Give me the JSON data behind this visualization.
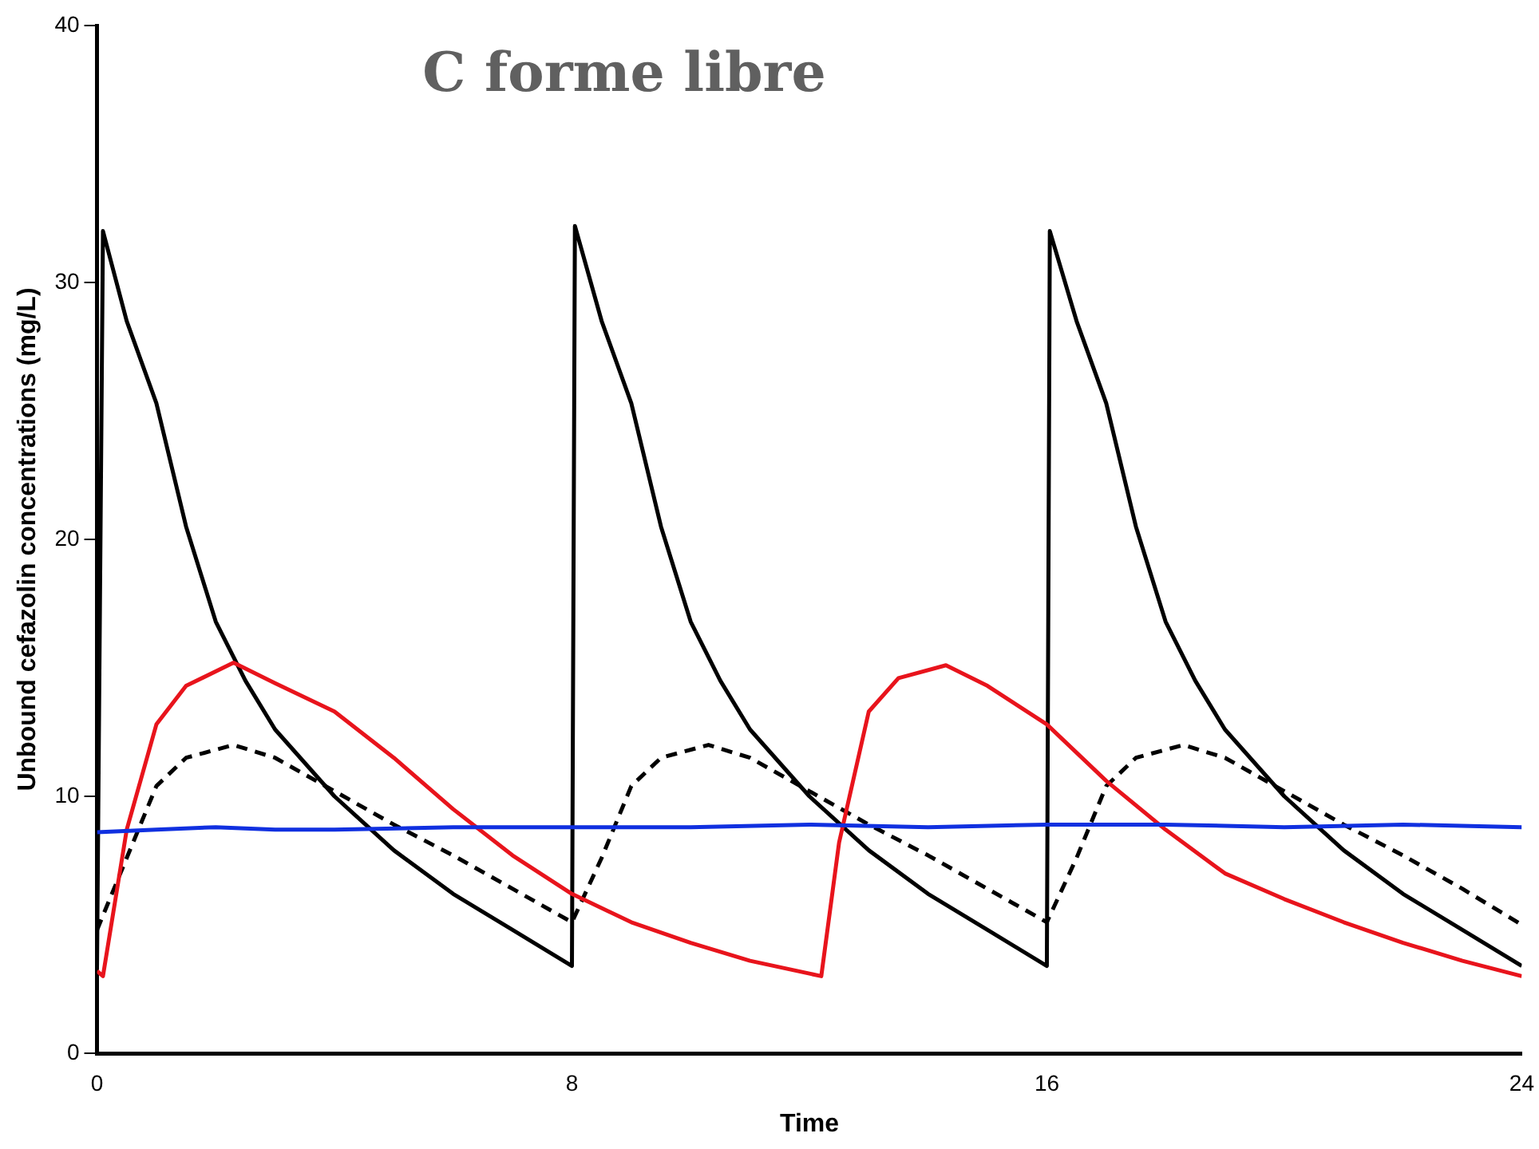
{
  "chart_data": {
    "type": "line",
    "title": "C forme libre",
    "xlabel": "Time",
    "ylabel": "Unbound cefazolin concentrations (mg/L)",
    "xlim": [
      0,
      24
    ],
    "xticks": [
      0,
      8,
      16,
      24
    ],
    "ylim": [
      0,
      40
    ],
    "yticks": [
      0,
      10,
      20,
      30,
      40
    ],
    "grid": false,
    "legend": false,
    "marker": "none",
    "series": [
      {
        "color": "#1030e0",
        "line_style": "solid",
        "x": [
          0,
          1,
          2,
          3,
          4,
          6,
          8,
          10,
          12,
          14,
          16,
          18,
          20,
          22,
          24
        ],
        "values": [
          8.6,
          8.7,
          8.8,
          8.7,
          8.7,
          8.8,
          8.8,
          8.8,
          8.9,
          8.8,
          8.9,
          8.9,
          8.8,
          8.9,
          8.8
        ]
      },
      {
        "color": "#e8141c",
        "line_style": "solid",
        "x": [
          0,
          0.1,
          0.5,
          1,
          1.5,
          2.3,
          3,
          4,
          5,
          6,
          7,
          8,
          9,
          10,
          11,
          12,
          12.2,
          12.5,
          13,
          13.5,
          14.3,
          15,
          16,
          17,
          18,
          19,
          20,
          21,
          22,
          23,
          24
        ],
        "values": [
          3.2,
          3.0,
          8.7,
          12.8,
          14.3,
          15.2,
          14.4,
          13.3,
          11.5,
          9.5,
          7.7,
          6.2,
          5.1,
          4.3,
          3.6,
          3.1,
          3.0,
          8.2,
          13.3,
          14.6,
          15.1,
          14.3,
          12.8,
          10.6,
          8.7,
          7.0,
          6.0,
          5.1,
          4.3,
          3.6,
          3.0
        ]
      },
      {
        "color": "#000000",
        "line_style": "dashed",
        "x": [
          0,
          0.5,
          1,
          1.5,
          2.3,
          3,
          4,
          5,
          6,
          7,
          8,
          8.5,
          9,
          9.5,
          10.3,
          11,
          12,
          13,
          14,
          15,
          16,
          16.5,
          17,
          17.5,
          18.3,
          19,
          20,
          21,
          22,
          23,
          24
        ],
        "values": [
          4.8,
          7.6,
          10.4,
          11.5,
          12.0,
          11.5,
          10.2,
          8.9,
          7.7,
          6.4,
          5.1,
          7.6,
          10.4,
          11.5,
          12.0,
          11.5,
          10.2,
          8.9,
          7.7,
          6.4,
          5.1,
          7.6,
          10.4,
          11.5,
          12.0,
          11.5,
          10.2,
          8.9,
          7.7,
          6.4,
          5.0
        ]
      },
      {
        "color": "#000000",
        "line_style": "solid",
        "x": [
          0,
          0.1,
          0.5,
          1,
          1.5,
          2,
          2.5,
          3,
          4,
          5,
          6,
          7,
          8,
          8.05,
          8.5,
          9,
          9.5,
          10,
          10.5,
          11,
          12,
          13,
          14,
          15,
          16,
          16.05,
          16.5,
          17,
          17.5,
          18,
          18.5,
          19,
          20,
          21,
          22,
          23,
          24
        ],
        "values": [
          3.4,
          32,
          28.5,
          25.3,
          20.5,
          16.8,
          14.5,
          12.6,
          10.0,
          7.9,
          6.2,
          4.8,
          3.4,
          32.2,
          28.5,
          25.3,
          20.5,
          16.8,
          14.5,
          12.6,
          10.0,
          7.9,
          6.2,
          4.8,
          3.4,
          32,
          28.5,
          25.3,
          20.5,
          16.8,
          14.5,
          12.6,
          10.0,
          7.9,
          6.2,
          4.8,
          3.4
        ]
      }
    ]
  }
}
